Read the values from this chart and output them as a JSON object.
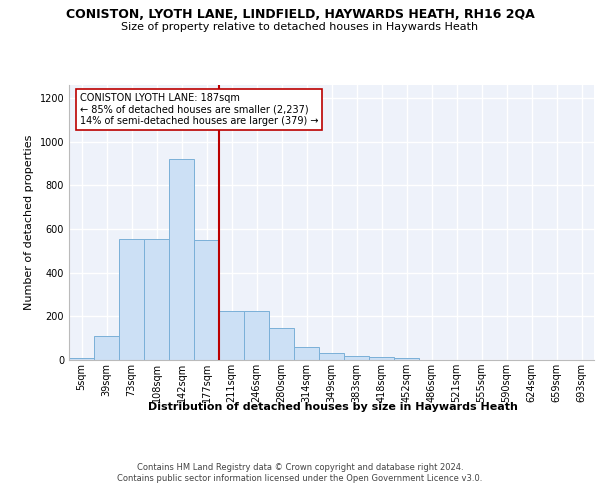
{
  "title": "CONISTON, LYOTH LANE, LINDFIELD, HAYWARDS HEATH, RH16 2QA",
  "subtitle": "Size of property relative to detached houses in Haywards Heath",
  "xlabel": "Distribution of detached houses by size in Haywards Heath",
  "ylabel": "Number of detached properties",
  "footer_line1": "Contains HM Land Registry data © Crown copyright and database right 2024.",
  "footer_line2": "Contains public sector information licensed under the Open Government Licence v3.0.",
  "bin_labels": [
    "5sqm",
    "39sqm",
    "73sqm",
    "108sqm",
    "142sqm",
    "177sqm",
    "211sqm",
    "246sqm",
    "280sqm",
    "314sqm",
    "349sqm",
    "383sqm",
    "418sqm",
    "452sqm",
    "486sqm",
    "521sqm",
    "555sqm",
    "590sqm",
    "624sqm",
    "659sqm",
    "693sqm"
  ],
  "bar_values": [
    10,
    110,
    555,
    555,
    920,
    550,
    225,
    225,
    145,
    60,
    33,
    20,
    15,
    10,
    0,
    0,
    0,
    0,
    0,
    0,
    0
  ],
  "bar_color": "#cce0f5",
  "bar_edge_color": "#7ab0d8",
  "ylim": [
    0,
    1260
  ],
  "yticks": [
    0,
    200,
    400,
    600,
    800,
    1000,
    1200
  ],
  "vline_x": 5.5,
  "vline_color": "#bb0000",
  "annotation_text": "CONISTON LYOTH LANE: 187sqm\n← 85% of detached houses are smaller (2,237)\n14% of semi-detached houses are larger (379) →",
  "annotation_box_color": "white",
  "annotation_box_edge": "#bb0000",
  "bg_color": "#eef2fa",
  "grid_color": "#ffffff",
  "title_fontsize": 9,
  "subtitle_fontsize": 8,
  "ylabel_fontsize": 8,
  "tick_fontsize": 7,
  "xlabel_fontsize": 8,
  "footer_fontsize": 6
}
